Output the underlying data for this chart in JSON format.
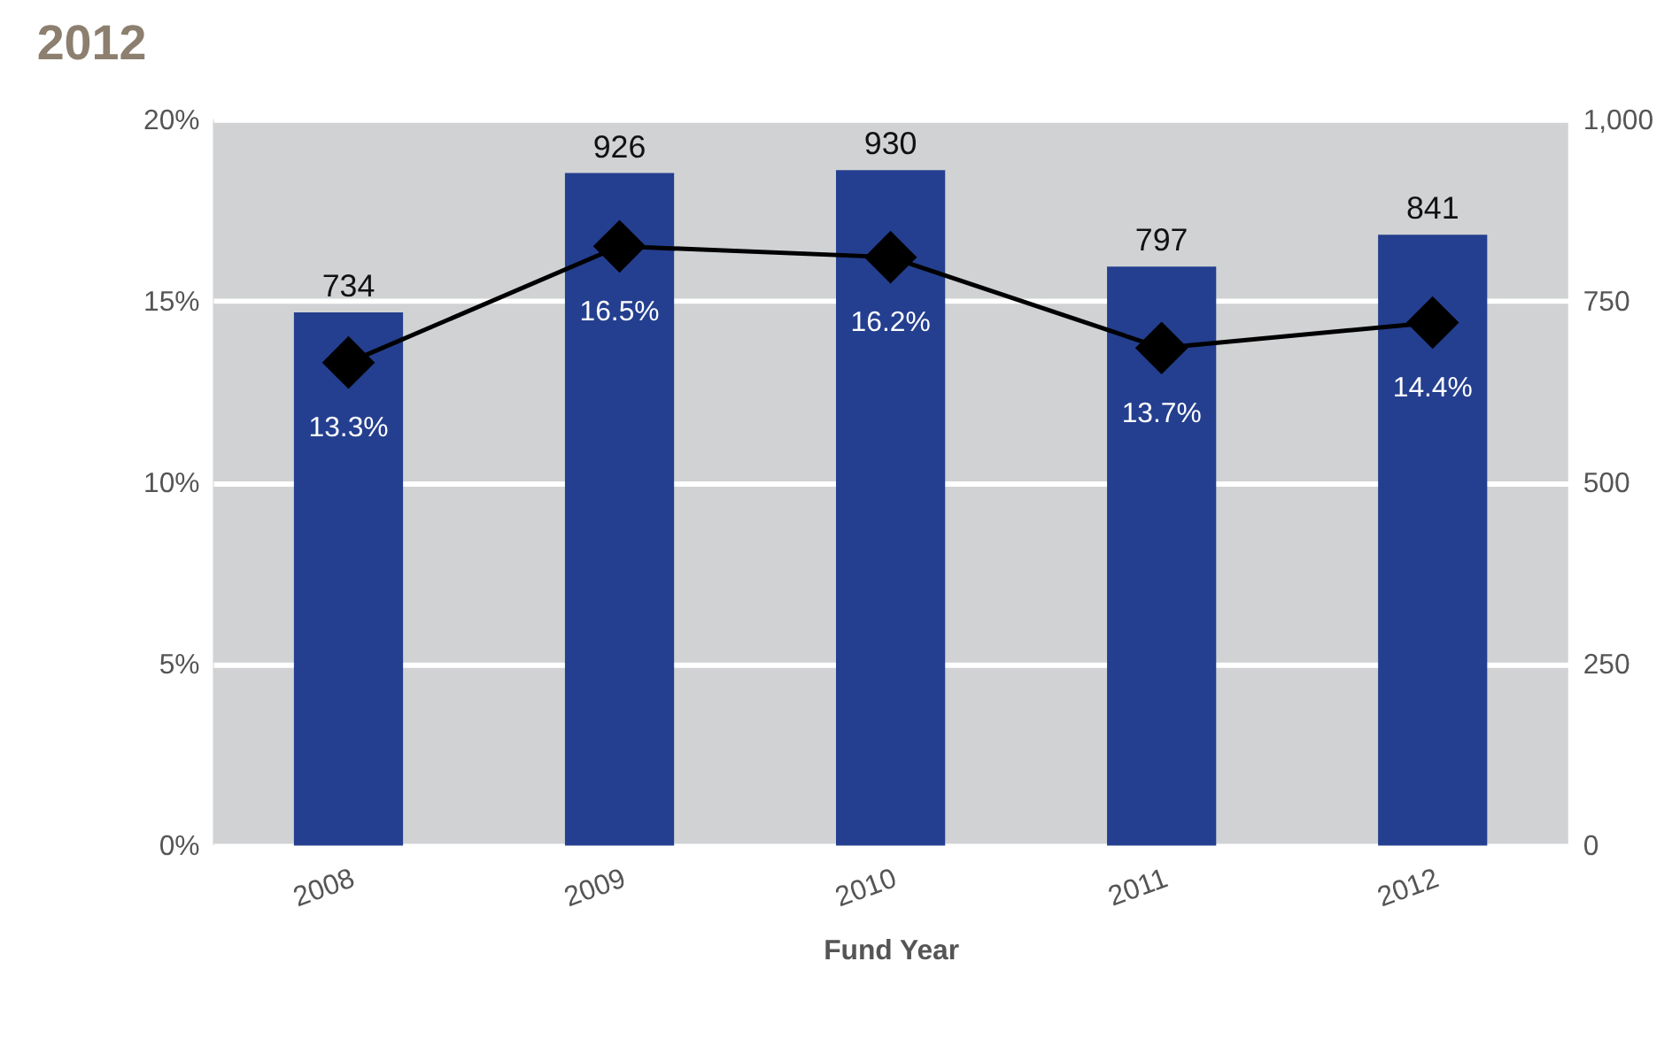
{
  "chart_data": {
    "type": "bar",
    "title": "2012",
    "xlabel": "Fund Year",
    "categories": [
      "2008",
      "2009",
      "2010",
      "2011",
      "2012"
    ],
    "series": [
      {
        "axis": "y2",
        "color": "#243f8f",
        "values": [
          734,
          926,
          930,
          797,
          841
        ],
        "data_labels": true
      },
      {
        "type": "line",
        "color": "#000000",
        "marker": "diamond",
        "values": [
          13.3,
          16.5,
          16.2,
          13.7,
          14.4
        ],
        "value_labels": [
          "13.3%",
          "16.5%",
          "16.2%",
          "13.7%",
          "14.4%"
        ]
      }
    ],
    "ylim": [
      0,
      20
    ],
    "yticks": [
      {
        "value": 0,
        "label": "0%"
      },
      {
        "value": 5,
        "label": "5%"
      },
      {
        "value": 10,
        "label": "10%"
      },
      {
        "value": 15,
        "label": "15%"
      },
      {
        "value": 20,
        "label": "20%"
      }
    ],
    "y2lim": [
      0,
      1000
    ],
    "y2ticks": [
      0,
      250,
      500,
      750,
      {
        "value": 1000,
        "label": "1,000"
      }
    ],
    "grid": "y"
  }
}
